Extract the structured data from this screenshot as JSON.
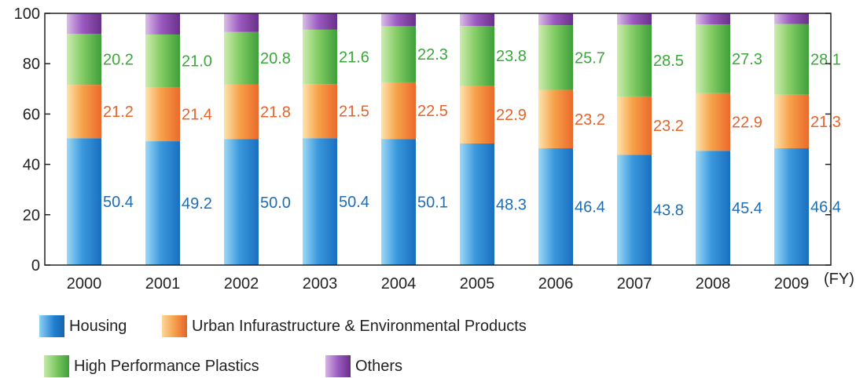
{
  "chart_data": {
    "type": "bar",
    "stacked": true,
    "categories": [
      "2000",
      "2001",
      "2002",
      "2003",
      "2004",
      "2005",
      "2006",
      "2007",
      "2008",
      "2009"
    ],
    "x_unit_label": "(FY)",
    "ylim": [
      0,
      100
    ],
    "yticks": [
      "0",
      "20",
      "40",
      "60",
      "80",
      "100"
    ],
    "series": [
      {
        "name": "Housing",
        "color": "#1f7fd1",
        "label_color": "#1f6db5",
        "values": [
          50.4,
          49.2,
          50.0,
          50.4,
          50.1,
          48.3,
          46.4,
          43.8,
          45.4,
          46.4
        ],
        "labels": [
          "50.4",
          "49.2",
          "50.0",
          "50.4",
          "50.1",
          "48.3",
          "46.4",
          "43.8",
          "45.4",
          "46.4"
        ]
      },
      {
        "name": "Urban Infurastructure & Environmental Products",
        "color": "#f07a22",
        "label_color": "#e8632a",
        "values": [
          21.2,
          21.4,
          21.8,
          21.5,
          22.5,
          22.9,
          23.2,
          23.2,
          22.9,
          21.3
        ],
        "labels": [
          "21.2",
          "21.4",
          "21.8",
          "21.5",
          "22.5",
          "22.9",
          "23.2",
          "23.2",
          "22.9",
          "21.3"
        ]
      },
      {
        "name": "High Performance Plastics",
        "color": "#4caf3c",
        "label_color": "#3aa83a",
        "values": [
          20.2,
          21.0,
          20.8,
          21.6,
          22.3,
          23.8,
          25.7,
          28.5,
          27.3,
          28.1
        ],
        "labels": [
          "20.2",
          "21.0",
          "20.8",
          "21.6",
          "22.3",
          "23.8",
          "25.7",
          "28.5",
          "27.3",
          "28.1"
        ]
      },
      {
        "name": "Others",
        "color": "#7a3a9a",
        "label_color": "#7a3a9a",
        "values": [
          8.2,
          8.4,
          7.4,
          6.5,
          5.1,
          5.0,
          4.7,
          4.5,
          4.4,
          4.2
        ],
        "labels": []
      }
    ],
    "grid": false,
    "legend_placement": "bottom"
  }
}
